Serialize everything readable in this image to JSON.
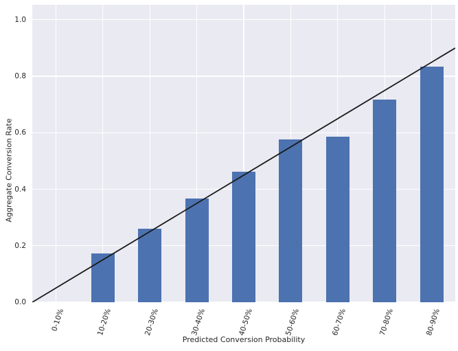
{
  "chart_data": {
    "type": "bar",
    "title": "",
    "xlabel": "Predicted Conversion Probability",
    "ylabel": "Aggregate Conversion Rate",
    "categories": [
      "0-10%",
      "10-20%",
      "20-30%",
      "30-40%",
      "40-50%",
      "50-60%",
      "60-70%",
      "70-80%",
      "80-90%"
    ],
    "values": [
      0,
      0.173,
      0.26,
      0.367,
      0.463,
      0.576,
      0.586,
      0.717,
      0.834
    ],
    "yticks": [
      0.0,
      0.2,
      0.4,
      0.6,
      0.8,
      1.0
    ],
    "ytick_labels": [
      "0.0",
      "0.2",
      "0.4",
      "0.6",
      "0.8",
      "1.0"
    ],
    "ylim": [
      0,
      1.053
    ],
    "grid": true,
    "legend": false,
    "reference_line": {
      "name": "perfect-calibration-diagonal",
      "from": {
        "x_cat": -0.5,
        "y": 0.0
      },
      "to": {
        "x_cat": 8.5,
        "y": 0.9
      }
    },
    "colors": {
      "bar": "#4c72b0",
      "line": "#1a1a1a",
      "plot_bg": "#eaeaf2",
      "grid": "#ffffff",
      "text": "#262626"
    }
  }
}
